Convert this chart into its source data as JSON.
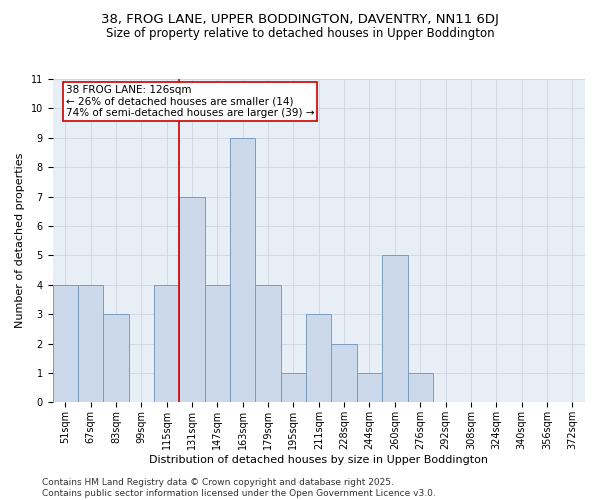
{
  "title": "38, FROG LANE, UPPER BODDINGTON, DAVENTRY, NN11 6DJ",
  "subtitle": "Size of property relative to detached houses in Upper Boddington",
  "xlabel": "Distribution of detached houses by size in Upper Boddington",
  "ylabel": "Number of detached properties",
  "categories": [
    "51sqm",
    "67sqm",
    "83sqm",
    "99sqm",
    "115sqm",
    "131sqm",
    "147sqm",
    "163sqm",
    "179sqm",
    "195sqm",
    "211sqm",
    "228sqm",
    "244sqm",
    "260sqm",
    "276sqm",
    "292sqm",
    "308sqm",
    "324sqm",
    "340sqm",
    "356sqm",
    "372sqm"
  ],
  "values": [
    4,
    4,
    3,
    0,
    4,
    7,
    4,
    9,
    4,
    1,
    3,
    2,
    1,
    5,
    1,
    0,
    0,
    0,
    0,
    0,
    0
  ],
  "bar_color": "#ccd9ea",
  "bar_edgecolor": "#7a9ec0",
  "bar_linewidth": 0.7,
  "vline_index": 5,
  "vline_color": "#cc0000",
  "annotation_text": "38 FROG LANE: 126sqm\n← 26% of detached houses are smaller (14)\n74% of semi-detached houses are larger (39) →",
  "ylim": [
    0,
    11
  ],
  "yticks": [
    0,
    1,
    2,
    3,
    4,
    5,
    6,
    7,
    8,
    9,
    10,
    11
  ],
  "grid_color": "#c8d0dc",
  "background_color": "#e8eef5",
  "footer": "Contains HM Land Registry data © Crown copyright and database right 2025.\nContains public sector information licensed under the Open Government Licence v3.0.",
  "title_fontsize": 9.5,
  "subtitle_fontsize": 8.5,
  "xlabel_fontsize": 8,
  "ylabel_fontsize": 8,
  "tick_fontsize": 7,
  "annotation_fontsize": 7.5,
  "footer_fontsize": 6.5
}
